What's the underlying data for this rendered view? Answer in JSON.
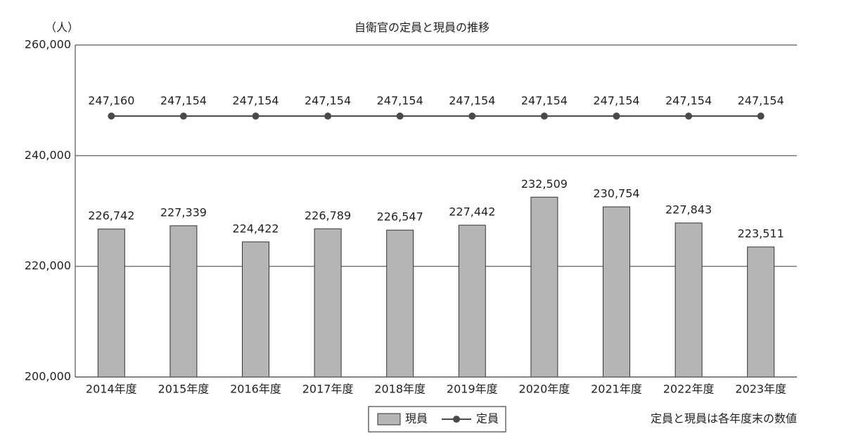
{
  "chart_data": {
    "type": "bar-line",
    "title": "自衛官の定員と現員の推移",
    "y_unit": "（人）",
    "note": "定員と現員は各年度末の数値",
    "categories": [
      "2014年度",
      "2015年度",
      "2016年度",
      "2017年度",
      "2018年度",
      "2019年度",
      "2020年度",
      "2021年度",
      "2022年度",
      "2023年度"
    ],
    "series": [
      {
        "name": "現員",
        "type": "bar",
        "color": "#b5b5b5",
        "values": [
          226742,
          227339,
          224422,
          226789,
          226547,
          227442,
          232509,
          230754,
          227843,
          223511
        ],
        "value_labels": [
          "226,742",
          "227,339",
          "224,422",
          "226,789",
          "226,547",
          "227,442",
          "232,509",
          "230,754",
          "227,843",
          "223,511"
        ]
      },
      {
        "name": "定員",
        "type": "line",
        "color": "#4a4a4a",
        "values": [
          247160,
          247154,
          247154,
          247154,
          247154,
          247154,
          247154,
          247154,
          247154,
          247154
        ],
        "value_labels": [
          "247,160",
          "247,154",
          "247,154",
          "247,154",
          "247,154",
          "247,154",
          "247,154",
          "247,154",
          "247,154",
          "247,154"
        ]
      }
    ],
    "ylim": [
      200000,
      260000
    ],
    "yticks": [
      {
        "value": 200000,
        "label": "200,000"
      },
      {
        "value": 220000,
        "label": "220,000"
      },
      {
        "value": 240000,
        "label": "240,000"
      },
      {
        "value": 260000,
        "label": "260,000"
      }
    ],
    "grid": true
  }
}
